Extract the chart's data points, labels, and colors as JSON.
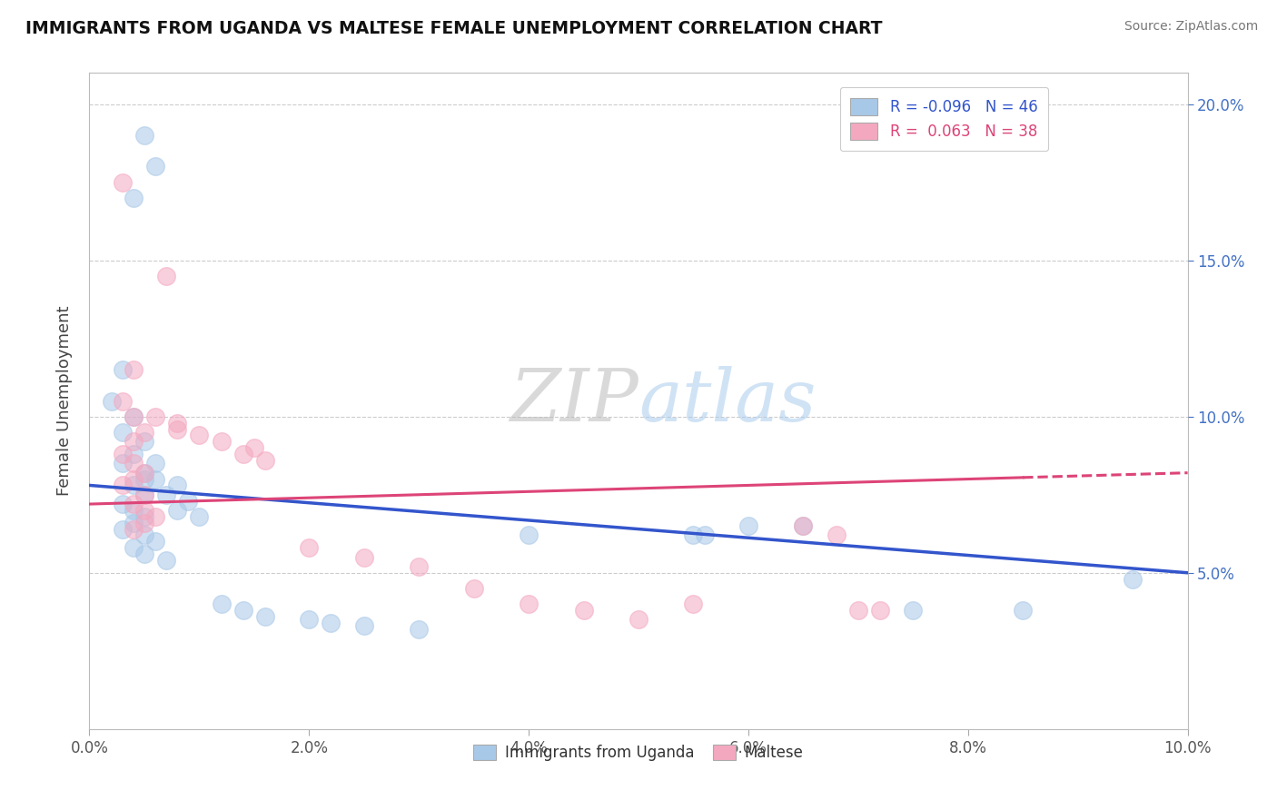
{
  "title": "IMMIGRANTS FROM UGANDA VS MALTESE FEMALE UNEMPLOYMENT CORRELATION CHART",
  "source": "Source: ZipAtlas.com",
  "ylabel": "Female Unemployment",
  "xlim": [
    0.0,
    0.1
  ],
  "ylim": [
    0.0,
    0.21
  ],
  "xtick_labels": [
    "0.0%",
    "2.0%",
    "4.0%",
    "6.0%",
    "8.0%",
    "10.0%"
  ],
  "xtick_vals": [
    0.0,
    0.02,
    0.04,
    0.06,
    0.08,
    0.1
  ],
  "ytick_vals": [
    0.05,
    0.1,
    0.15,
    0.2
  ],
  "right_ytick_labels": [
    "5.0%",
    "10.0%",
    "15.0%",
    "20.0%"
  ],
  "legend_r_blue": "-0.096",
  "legend_n_blue": "46",
  "legend_r_pink": "0.063",
  "legend_n_pink": "38",
  "blue_color": "#a8c8e8",
  "pink_color": "#f4a8c0",
  "blue_line_color": "#3355cc",
  "pink_line_color": "#dd4477",
  "watermark_text": "ZIPatlas",
  "background_color": "#ffffff",
  "grid_color": "#cccccc",
  "blue_scatter_x": [
    0.005,
    0.006,
    0.004,
    0.003,
    0.002,
    0.004,
    0.003,
    0.005,
    0.004,
    0.003,
    0.005,
    0.006,
    0.004,
    0.005,
    0.003,
    0.004,
    0.005,
    0.004,
    0.003,
    0.005,
    0.006,
    0.004,
    0.005,
    0.007,
    0.006,
    0.005,
    0.008,
    0.007,
    0.009,
    0.008,
    0.01,
    0.012,
    0.014,
    0.016,
    0.02,
    0.022,
    0.025,
    0.03,
    0.04,
    0.055,
    0.056,
    0.06,
    0.065,
    0.075,
    0.085,
    0.095
  ],
  "blue_scatter_y": [
    0.19,
    0.18,
    0.17,
    0.115,
    0.105,
    0.1,
    0.095,
    0.092,
    0.088,
    0.085,
    0.082,
    0.08,
    0.078,
    0.075,
    0.072,
    0.07,
    0.068,
    0.066,
    0.064,
    0.062,
    0.06,
    0.058,
    0.056,
    0.054,
    0.085,
    0.08,
    0.078,
    0.075,
    0.073,
    0.07,
    0.068,
    0.04,
    0.038,
    0.036,
    0.035,
    0.034,
    0.033,
    0.032,
    0.062,
    0.062,
    0.062,
    0.065,
    0.065,
    0.038,
    0.038,
    0.048
  ],
  "pink_scatter_x": [
    0.003,
    0.004,
    0.003,
    0.004,
    0.005,
    0.004,
    0.003,
    0.004,
    0.005,
    0.004,
    0.003,
    0.005,
    0.004,
    0.005,
    0.006,
    0.005,
    0.004,
    0.007,
    0.006,
    0.008,
    0.008,
    0.01,
    0.012,
    0.015,
    0.014,
    0.016,
    0.02,
    0.025,
    0.03,
    0.035,
    0.04,
    0.045,
    0.05,
    0.055,
    0.065,
    0.068,
    0.07,
    0.072
  ],
  "pink_scatter_y": [
    0.175,
    0.115,
    0.105,
    0.1,
    0.095,
    0.092,
    0.088,
    0.085,
    0.082,
    0.08,
    0.078,
    0.075,
    0.072,
    0.07,
    0.068,
    0.066,
    0.064,
    0.145,
    0.1,
    0.098,
    0.096,
    0.094,
    0.092,
    0.09,
    0.088,
    0.086,
    0.058,
    0.055,
    0.052,
    0.045,
    0.04,
    0.038,
    0.035,
    0.04,
    0.065,
    0.062,
    0.038,
    0.038
  ],
  "blue_line_x": [
    0.0,
    0.1
  ],
  "blue_line_y": [
    0.078,
    0.05
  ],
  "pink_line_x": [
    0.0,
    0.1
  ],
  "pink_line_y": [
    0.072,
    0.082
  ]
}
